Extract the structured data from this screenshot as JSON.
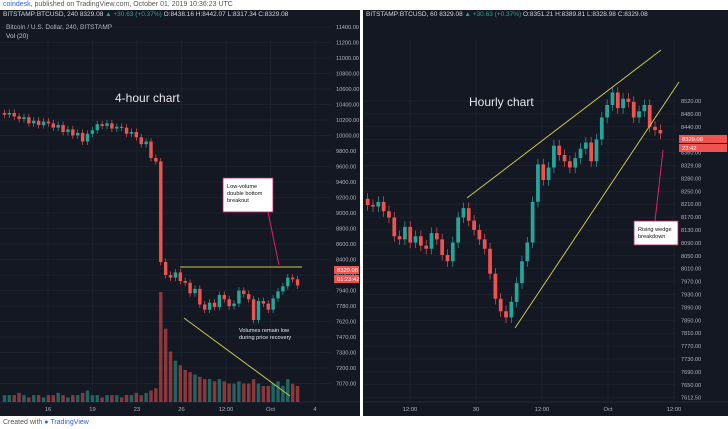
{
  "header": {
    "brand": "coindesk",
    "published": ", published on TradingView.com, October 01, 2019 10:36:23 UTC"
  },
  "footer": {
    "prefix": "Created with",
    "brand": "TradingView"
  },
  "colors": {
    "up": "#26a69a",
    "down": "#ef5350",
    "bg": "#141823",
    "wedge": "#c8c84a",
    "grid": "#232836"
  },
  "chart_data": [
    {
      "type": "candlestick",
      "symbol": "BITSTAMP:BTCUSD, 240",
      "header_text": "BITSTAMP:BTCUSD, 240  8329.08",
      "header_change": "▲ +30.63 (+0.37%)",
      "header_ohlc": "O:8438.16 H:8442.07 L:8317.34 C:8329.08",
      "subtitle": "Bitcoin / U.S. Dollar, 240, BITSTAMP",
      "volume_label": "Vol (20)",
      "title": "4-hour chart",
      "y_ticks": [
        "11400.00",
        "11200.00",
        "11000.00",
        "10800.00",
        "10600.00",
        "10400.00",
        "10200.00",
        "10000.00",
        "9800.00",
        "9600.00",
        "9400.00",
        "9200.00",
        "9000.00",
        "8800.00",
        "8600.00",
        "8400.00",
        "8100.00",
        "7940.00",
        "7780.00",
        "7620.00",
        "7470.00",
        "7330.00",
        "7200.00",
        "7070.00"
      ],
      "x_ticks": [
        "16",
        "19",
        "23",
        "26",
        "12:00",
        "Oct",
        "4"
      ],
      "price_badges": [
        "8329.08",
        "01:23:42"
      ],
      "annotations": [
        "Low-volume double bottom breakout",
        "Volumes remain low during price recovery"
      ],
      "series": [
        {
          "name": "price",
          "values": [
            10300,
            10320,
            10280,
            10250,
            10270,
            10200,
            10230,
            10180,
            10220,
            10200,
            10150,
            10180,
            10100,
            10130,
            10060,
            10090,
            9990,
            10080,
            10120,
            10190,
            10170,
            10200,
            10140,
            10160,
            10150,
            10080,
            10100,
            10040,
            9960,
            9990,
            9800,
            9760,
            8600,
            8450,
            8420,
            8480,
            8380,
            8360,
            8240,
            8290,
            8110,
            8050,
            8130,
            8080,
            8220,
            8170,
            8090,
            8120,
            8270,
            8230,
            8170,
            7930,
            8150,
            8120,
            8050,
            8180,
            8260,
            8320,
            8420,
            8400,
            8330
          ]
        },
        {
          "name": "volume",
          "values": [
            3,
            3,
            3,
            4,
            3,
            2,
            3,
            3,
            2,
            3,
            3,
            4,
            3,
            2,
            3,
            3,
            4,
            5,
            3,
            3,
            2,
            3,
            3,
            3,
            2,
            3,
            3,
            4,
            3,
            4,
            5,
            6,
            48,
            32,
            22,
            18,
            16,
            14,
            13,
            12,
            11,
            10,
            10,
            9,
            10,
            9,
            8,
            8,
            9,
            8,
            8,
            10,
            8,
            7,
            7,
            8,
            9,
            7,
            10,
            8,
            7
          ]
        }
      ]
    },
    {
      "type": "candlestick",
      "symbol": "BITSTAMP:BTCUSD, 60",
      "header_text": "BITSTAMP:BTCUSD, 60  8329.08",
      "header_change": "▲ +30.63 (+0.37%)",
      "header_ohlc": "O:8351.21 H:8389.81 L:8328.98 C:8329.08",
      "title": "Hourly chart",
      "y_ticks": [
        "8520.00",
        "8480.00",
        "8440.00",
        "8400.00",
        "8360.00",
        "8329.08",
        "8280.00",
        "8250.00",
        "8210.00",
        "8170.00",
        "8130.00",
        "8090.00",
        "8050.00",
        "8010.00",
        "7970.00",
        "7930.00",
        "7890.00",
        "7850.00",
        "7810.00",
        "7770.00",
        "7730.00",
        "7690.00",
        "7650.00",
        "7612.50"
      ],
      "x_ticks": [
        "12:00",
        "30",
        "12:00",
        "Oct",
        "12:00"
      ],
      "price_badges": [
        "8329.08",
        "23:42"
      ],
      "annotations": [
        "Rising wedge breakdown"
      ],
      "series": [
        {
          "name": "price",
          "values": [
            8100,
            8095,
            8110,
            8080,
            8060,
            8000,
            7990,
            8030,
            7980,
            8000,
            7970,
            7960,
            8010,
            7990,
            7940,
            7920,
            7980,
            8060,
            8090,
            8050,
            8020,
            7990,
            7960,
            7880,
            7800,
            7760,
            7740,
            7790,
            7850,
            7920,
            7980,
            8110,
            8230,
            8180,
            8220,
            8290,
            8260,
            8240,
            8220,
            8250,
            8280,
            8300,
            8240,
            8310,
            8380,
            8420,
            8460,
            8410,
            8440,
            8430,
            8380,
            8400,
            8420,
            8350,
            8340,
            8329
          ]
        }
      ]
    }
  ]
}
